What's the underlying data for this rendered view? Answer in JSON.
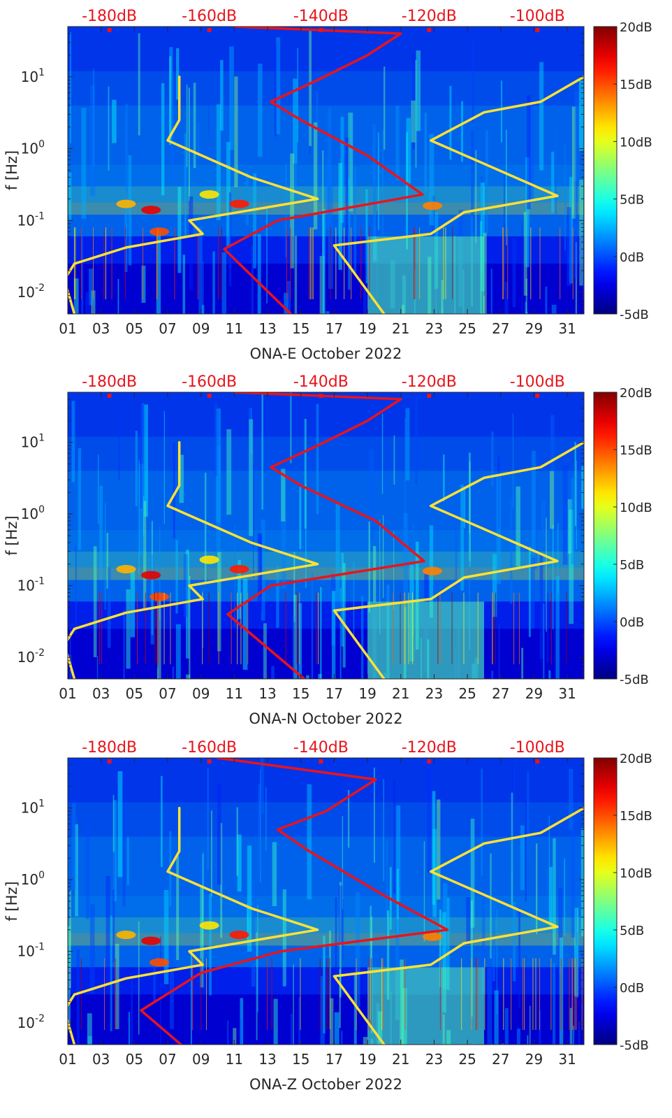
{
  "chart_data": [
    {
      "type": "heatmap",
      "station": "ONA-E",
      "xlabel": "ONA-E October 2022",
      "ylabel": "f [Hz]",
      "x_ticks": [
        "01",
        "03",
        "05",
        "07",
        "09",
        "11",
        "13",
        "15",
        "17",
        "19",
        "21",
        "23",
        "25",
        "27",
        "29",
        "31"
      ],
      "x_range_days": [
        1,
        32
      ],
      "y_scale": "log",
      "y_range_hz": [
        0.005,
        50
      ],
      "y_ticks": [
        {
          "value": 0.01,
          "base": "10",
          "exp": "-2"
        },
        {
          "value": 0.1,
          "base": "10",
          "exp": "-1"
        },
        {
          "value": 1,
          "base": "10",
          "exp": "0"
        },
        {
          "value": 10,
          "base": "10",
          "exp": "1"
        }
      ],
      "top_axis_labels": [
        "-180dB",
        "-160dB",
        "-140dB",
        "-120dB",
        "-100dB"
      ],
      "top_axis_day_positions": [
        3.5,
        9.5,
        16.2,
        22.7,
        29.2
      ],
      "colorbar": {
        "labels": [
          "20dB",
          "15dB",
          "10dB",
          "5dB",
          "0dB",
          "-5dB"
        ],
        "range_db": [
          -5,
          20
        ]
      },
      "series": [
        {
          "color": "#ffe135",
          "points": [
            [
              1.4,
              0.005
            ],
            [
              0.8,
              0.015
            ],
            [
              1.4,
              0.025
            ],
            [
              4.5,
              0.042
            ],
            [
              9.1,
              0.065
            ],
            [
              8.3,
              0.1
            ],
            [
              16.0,
              0.2
            ],
            [
              12.0,
              0.4
            ],
            [
              7.0,
              1.3
            ],
            [
              7.7,
              2.5
            ],
            [
              7.7,
              10
            ]
          ]
        },
        {
          "color": "#ffe135",
          "points": [
            [
              20.0,
              0.005
            ],
            [
              17.0,
              0.045
            ],
            [
              22.8,
              0.065
            ],
            [
              24.8,
              0.13
            ],
            [
              30.4,
              0.22
            ],
            [
              22.8,
              1.3
            ],
            [
              26.0,
              3.2
            ],
            [
              29.4,
              4.5
            ],
            [
              32.0,
              10
            ]
          ]
        },
        {
          "color": "#e8141c",
          "points": [
            [
              14.4,
              0.005
            ],
            [
              10.4,
              0.04
            ],
            [
              13.6,
              0.1
            ],
            [
              22.3,
              0.23
            ],
            [
              19.0,
              0.8
            ],
            [
              15.0,
              2.5
            ],
            [
              13.2,
              4.5
            ],
            [
              16.0,
              9
            ],
            [
              19.0,
              20
            ],
            [
              21.0,
              40
            ],
            [
              11.0,
              50
            ]
          ]
        }
      ]
    },
    {
      "type": "heatmap",
      "station": "ONA-N",
      "xlabel": "ONA-N October 2022",
      "ylabel": "f [Hz]",
      "x_ticks": [
        "01",
        "03",
        "05",
        "07",
        "09",
        "11",
        "13",
        "15",
        "17",
        "19",
        "21",
        "23",
        "25",
        "27",
        "29",
        "31"
      ],
      "x_range_days": [
        1,
        32
      ],
      "y_scale": "log",
      "y_range_hz": [
        0.005,
        50
      ],
      "y_ticks": [
        {
          "value": 0.01,
          "base": "10",
          "exp": "-2"
        },
        {
          "value": 0.1,
          "base": "10",
          "exp": "-1"
        },
        {
          "value": 1,
          "base": "10",
          "exp": "0"
        },
        {
          "value": 10,
          "base": "10",
          "exp": "1"
        }
      ],
      "top_axis_labels": [
        "-180dB",
        "-160dB",
        "-140dB",
        "-120dB",
        "-100dB"
      ],
      "top_axis_day_positions": [
        3.5,
        9.5,
        16.2,
        22.7,
        29.2
      ],
      "colorbar": {
        "labels": [
          "20dB",
          "15dB",
          "10dB",
          "5dB",
          "0dB",
          "-5dB"
        ],
        "range_db": [
          -5,
          20
        ]
      },
      "series": [
        {
          "color": "#ffe135",
          "points": [
            [
              1.4,
              0.005
            ],
            [
              0.8,
              0.015
            ],
            [
              1.4,
              0.025
            ],
            [
              4.5,
              0.042
            ],
            [
              9.1,
              0.065
            ],
            [
              8.3,
              0.1
            ],
            [
              16.0,
              0.2
            ],
            [
              12.0,
              0.4
            ],
            [
              7.0,
              1.3
            ],
            [
              7.7,
              2.5
            ],
            [
              7.7,
              10
            ]
          ]
        },
        {
          "color": "#ffe135",
          "points": [
            [
              20.0,
              0.005
            ],
            [
              17.0,
              0.045
            ],
            [
              22.8,
              0.065
            ],
            [
              24.8,
              0.13
            ],
            [
              30.4,
              0.22
            ],
            [
              22.8,
              1.3
            ],
            [
              26.0,
              3.2
            ],
            [
              29.4,
              4.5
            ],
            [
              32.0,
              10
            ]
          ]
        },
        {
          "color": "#e8141c",
          "points": [
            [
              15.2,
              0.005
            ],
            [
              10.6,
              0.04
            ],
            [
              13.2,
              0.1
            ],
            [
              22.4,
              0.22
            ],
            [
              19.5,
              0.8
            ],
            [
              15.0,
              2.5
            ],
            [
              13.2,
              4.5
            ],
            [
              16.0,
              9
            ],
            [
              19.0,
              20
            ],
            [
              21.0,
              40
            ],
            [
              11.0,
              50
            ]
          ]
        }
      ]
    },
    {
      "type": "heatmap",
      "station": "ONA-Z",
      "xlabel": "ONA-Z October 2022",
      "ylabel": "f [Hz]",
      "x_ticks": [
        "01",
        "03",
        "05",
        "07",
        "09",
        "11",
        "13",
        "15",
        "17",
        "19",
        "21",
        "23",
        "25",
        "27",
        "29",
        "31"
      ],
      "x_range_days": [
        1,
        32
      ],
      "y_scale": "log",
      "y_range_hz": [
        0.005,
        50
      ],
      "y_ticks": [
        {
          "value": 0.01,
          "base": "10",
          "exp": "-2"
        },
        {
          "value": 0.1,
          "base": "10",
          "exp": "-1"
        },
        {
          "value": 1,
          "base": "10",
          "exp": "0"
        },
        {
          "value": 10,
          "base": "10",
          "exp": "1"
        }
      ],
      "top_axis_labels": [
        "-180dB",
        "-160dB",
        "-140dB",
        "-120dB",
        "-100dB"
      ],
      "top_axis_day_positions": [
        3.5,
        9.5,
        16.2,
        22.7,
        29.2
      ],
      "colorbar": {
        "labels": [
          "20dB",
          "15dB",
          "10dB",
          "5dB",
          "0dB",
          "-5dB"
        ],
        "range_db": [
          -5,
          20
        ]
      },
      "series": [
        {
          "color": "#ffe135",
          "points": [
            [
              1.4,
              0.005
            ],
            [
              0.8,
              0.015
            ],
            [
              1.4,
              0.025
            ],
            [
              4.5,
              0.042
            ],
            [
              9.1,
              0.065
            ],
            [
              8.3,
              0.1
            ],
            [
              16.0,
              0.2
            ],
            [
              12.0,
              0.4
            ],
            [
              7.0,
              1.3
            ],
            [
              7.7,
              2.5
            ],
            [
              7.7,
              10
            ]
          ]
        },
        {
          "color": "#ffe135",
          "points": [
            [
              20.0,
              0.005
            ],
            [
              17.0,
              0.045
            ],
            [
              22.8,
              0.065
            ],
            [
              24.8,
              0.13
            ],
            [
              30.4,
              0.22
            ],
            [
              22.8,
              1.3
            ],
            [
              26.0,
              3.2
            ],
            [
              29.4,
              4.5
            ],
            [
              32.0,
              10
            ]
          ]
        },
        {
          "color": "#e8141c",
          "points": [
            [
              7.8,
              0.005
            ],
            [
              5.4,
              0.015
            ],
            [
              9.0,
              0.05
            ],
            [
              13.8,
              0.1
            ],
            [
              23.8,
              0.2
            ],
            [
              20.0,
              0.6
            ],
            [
              15.5,
              2.5
            ],
            [
              13.6,
              5
            ],
            [
              16.5,
              9
            ],
            [
              19.5,
              25
            ],
            [
              10.0,
              50
            ]
          ]
        }
      ]
    }
  ]
}
